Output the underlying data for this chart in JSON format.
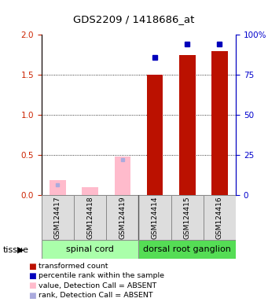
{
  "title": "GDS2209 / 1418686_at",
  "samples": [
    "GSM124417",
    "GSM124418",
    "GSM124419",
    "GSM124414",
    "GSM124415",
    "GSM124416"
  ],
  "group1_name": "spinal cord",
  "group2_name": "dorsal root ganglion",
  "group1_color": "#AAFFAA",
  "group2_color": "#55DD55",
  "transformed_count": [
    null,
    null,
    null,
    1.5,
    1.75,
    1.8
  ],
  "transformed_count_absent": [
    0.18,
    0.1,
    0.48,
    null,
    null,
    null
  ],
  "percentile_rank": [
    null,
    null,
    null,
    0.86,
    0.94,
    0.94
  ],
  "percentile_rank_absent": [
    0.06,
    null,
    0.22,
    null,
    null,
    null
  ],
  "ylim_left": [
    0,
    2
  ],
  "ylim_right": [
    0,
    100
  ],
  "yticks_left": [
    0,
    0.5,
    1.0,
    1.5,
    2.0
  ],
  "yticks_right": [
    0,
    25,
    50,
    75,
    100
  ],
  "bar_color_present": "#BB1100",
  "bar_color_absent": "#FFBBCC",
  "dot_color_present": "#0000BB",
  "dot_color_absent": "#AAAADD",
  "bar_width": 0.5,
  "legend_items": [
    {
      "label": "transformed count",
      "color": "#BB1100"
    },
    {
      "label": "percentile rank within the sample",
      "color": "#0000BB"
    },
    {
      "label": "value, Detection Call = ABSENT",
      "color": "#FFBBCC"
    },
    {
      "label": "rank, Detection Call = ABSENT",
      "color": "#AAAADD"
    }
  ]
}
